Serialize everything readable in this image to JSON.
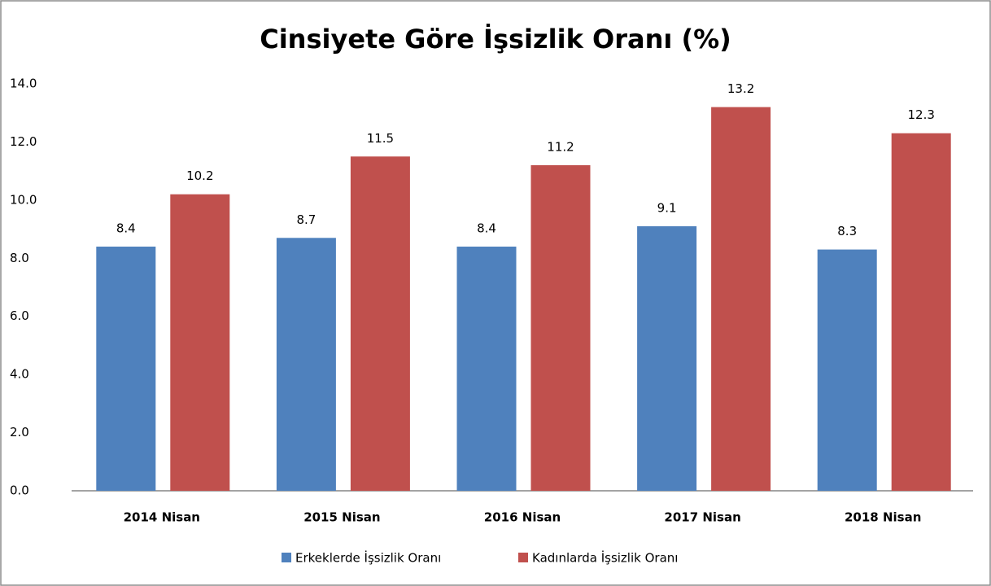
{
  "chart_data": {
    "type": "bar",
    "title": "Cinsiyete Göre İşsizlik Oranı (%)",
    "categories": [
      "2014 Nisan",
      "2015 Nisan",
      "2016 Nisan",
      "2017 Nisan",
      "2018 Nisan"
    ],
    "series": [
      {
        "name": "Erkeklerde İşsizlik Oranı",
        "color": "#4f81bd",
        "values": [
          8.4,
          8.7,
          8.4,
          9.1,
          8.3
        ]
      },
      {
        "name": "Kadınlarda İşsizlik Oranı",
        "color": "#c0504d",
        "values": [
          10.2,
          11.5,
          11.2,
          13.2,
          12.3
        ]
      }
    ],
    "ylim": [
      0,
      14
    ],
    "yticks": [
      {
        "value": 0,
        "label": "0.0"
      },
      {
        "value": 2,
        "label": "2.0"
      },
      {
        "value": 4,
        "label": "4.0"
      },
      {
        "value": 6,
        "label": "6.0"
      },
      {
        "value": 8,
        "label": "8.0"
      },
      {
        "value": 10,
        "label": "10.0"
      },
      {
        "value": 12,
        "label": "12.0"
      },
      {
        "value": 14,
        "label": "14.0"
      }
    ],
    "grid": false,
    "legend": "bottom"
  }
}
